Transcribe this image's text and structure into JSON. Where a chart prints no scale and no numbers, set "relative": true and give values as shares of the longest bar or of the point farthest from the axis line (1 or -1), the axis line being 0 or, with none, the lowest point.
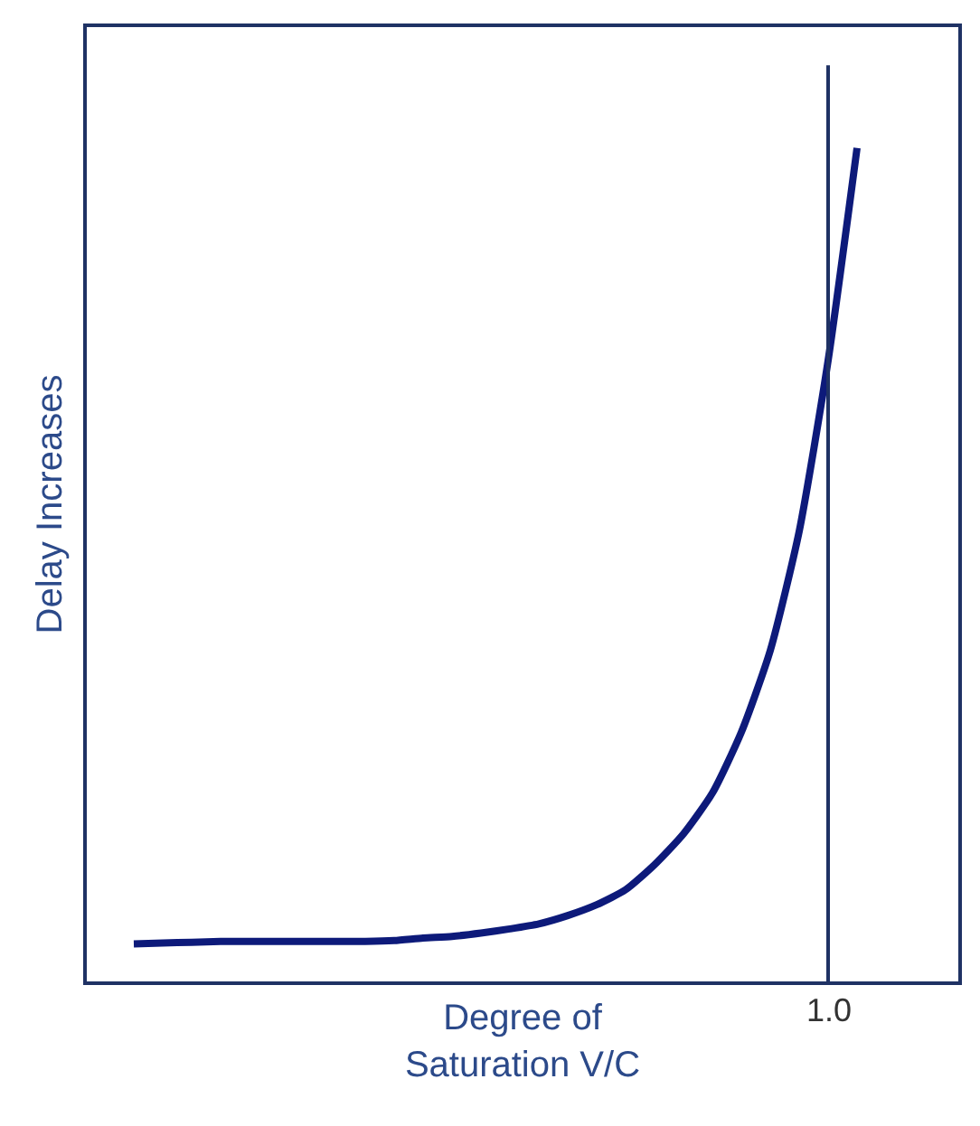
{
  "chart_data": {
    "type": "line",
    "relative": true,
    "xlabel": "Degree of\nSaturation V/C",
    "ylabel": "Delay Increases",
    "categories": [
      null,
      null,
      null,
      null,
      null,
      null,
      null,
      null,
      null,
      null,
      null,
      null,
      null,
      null,
      null,
      null,
      null,
      null,
      null,
      null,
      null,
      null,
      null,
      null,
      null,
      null
    ],
    "series": [
      {
        "color": "#0d1a7a",
        "values": [
          0.045,
          0.046,
          0.047,
          0.048,
          0.048,
          0.048,
          0.048,
          0.048,
          0.048,
          0.049,
          0.052,
          0.054,
          0.058,
          0.063,
          0.069,
          0.079,
          0.092,
          0.11,
          0.14,
          0.177,
          0.226,
          0.299,
          0.397,
          0.54,
          0.745,
          1.0
        ]
      }
    ],
    "annotations": [
      "1.0"
    ],
    "marker": "none",
    "line_style": "solid"
  }
}
